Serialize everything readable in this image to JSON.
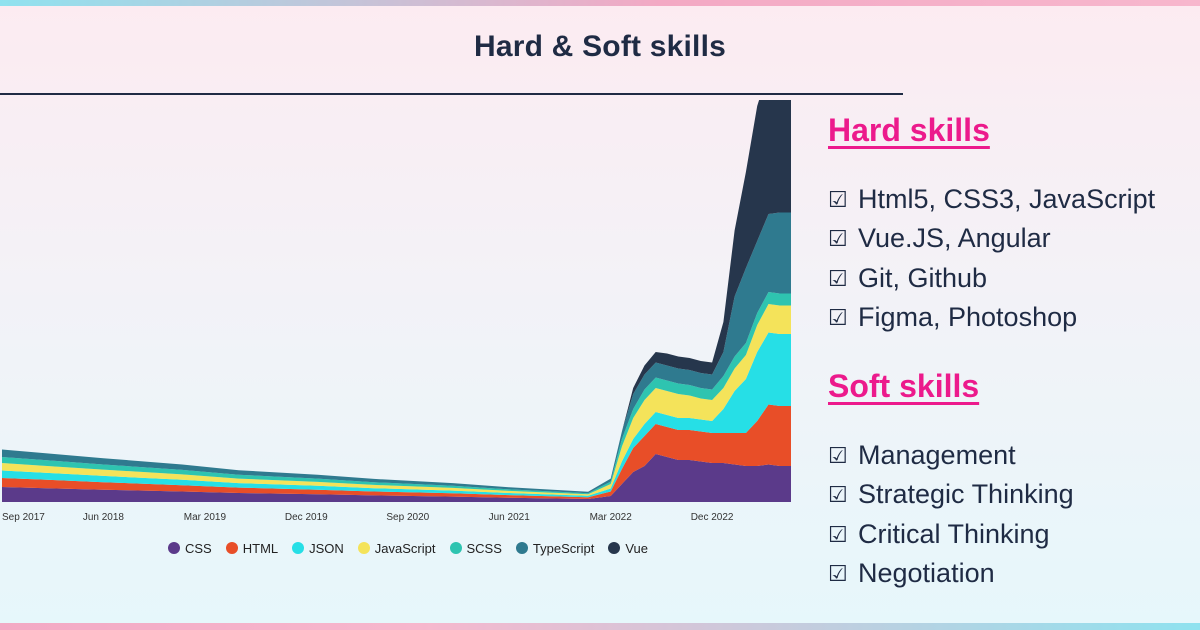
{
  "header": {
    "title": "Hard & Soft skills"
  },
  "chart_data": {
    "type": "area",
    "stacked": true,
    "x_ticks": [
      "Sep 2017",
      "Jun 2018",
      "Mar 2019",
      "Dec 2019",
      "Sep 2020",
      "Jun 2021",
      "Mar 2022",
      "Dec 2022"
    ],
    "x": [
      "2017-09",
      "2018-01",
      "2018-06",
      "2019-01",
      "2019-06",
      "2020-01",
      "2020-06",
      "2021-01",
      "2021-06",
      "2022-01",
      "2022-03",
      "2022-04",
      "2022-05",
      "2022-06",
      "2022-07",
      "2022-08",
      "2022-09",
      "2022-10",
      "2022-11",
      "2022-12",
      "2023-01",
      "2023-02",
      "2023-03",
      "2023-04",
      "2023-05",
      "2023-06",
      "2023-07"
    ],
    "series": [
      {
        "name": "CSS",
        "color": "#5b3a8a",
        "values": [
          5,
          4.6,
          4.1,
          3.5,
          3,
          2.6,
          2.2,
          1.8,
          1.4,
          1,
          2,
          6,
          10,
          12,
          16,
          15,
          14,
          14,
          13.5,
          13,
          13,
          12.5,
          12,
          12,
          12.5,
          12,
          12
        ]
      },
      {
        "name": "HTML",
        "color": "#e84e28",
        "values": [
          3,
          2.8,
          2.5,
          2.1,
          1.8,
          1.5,
          1.3,
          1.1,
          0.9,
          0.6,
          1.5,
          5,
          8,
          10,
          10,
          10,
          10,
          10,
          10,
          10,
          10,
          10.5,
          11,
          15,
          20,
          20,
          20
        ]
      },
      {
        "name": "JSON",
        "color": "#26dfe6",
        "values": [
          2.5,
          2.3,
          2.1,
          1.8,
          1.5,
          1.3,
          1.1,
          0.9,
          0.7,
          0.5,
          1,
          2.5,
          3,
          4,
          4,
          4,
          4,
          4,
          4,
          4,
          8,
          14,
          18,
          23,
          24,
          24,
          24
        ]
      },
      {
        "name": "JavaScript",
        "color": "#f4e35a",
        "values": [
          2.5,
          2.3,
          2.1,
          1.8,
          1.5,
          1.3,
          1.1,
          0.9,
          0.7,
          0.5,
          1.5,
          5,
          7,
          8,
          8,
          8,
          8,
          7.5,
          7,
          7,
          7,
          7.5,
          8,
          9,
          9.5,
          9.5,
          9.5
        ]
      },
      {
        "name": "SCSS",
        "color": "#2ec4b0",
        "values": [
          2,
          1.9,
          1.7,
          1.5,
          1.3,
          1.1,
          0.9,
          0.7,
          0.5,
          0.3,
          0.8,
          2.5,
          3,
          3.5,
          3.5,
          3.5,
          3.5,
          3.5,
          3.5,
          3.5,
          4,
          4,
          4,
          4,
          4,
          4,
          4
        ]
      },
      {
        "name": "TypeScript",
        "color": "#2f7a8f",
        "values": [
          2.5,
          2.3,
          2.1,
          1.8,
          1.5,
          1.3,
          1.1,
          0.9,
          0.7,
          0.5,
          1,
          2.5,
          5,
          5,
          5,
          5,
          5,
          5,
          5,
          5,
          8,
          20,
          25,
          24,
          26,
          27,
          27
        ]
      },
      {
        "name": "Vue",
        "color": "#26364c",
        "values": [
          0,
          0,
          0,
          0,
          0,
          0,
          0,
          0,
          0,
          0,
          0,
          0,
          2,
          3,
          3.5,
          4,
          4,
          4,
          4,
          4,
          10,
          22,
          32,
          45,
          48,
          52,
          55
        ]
      }
    ],
    "legend_position": "bottom",
    "grid": false
  },
  "hard_skills": {
    "heading": "Hard skills",
    "items": [
      "Html5, CSS3, JavaScript",
      "Vue.JS, Angular",
      "Git, Github",
      "Figma, Photoshop"
    ]
  },
  "soft_skills": {
    "heading": "Soft skills",
    "items": [
      "Management",
      "Strategic Thinking",
      "Critical Thinking",
      "Negotiation"
    ]
  },
  "check_glyph": "☑"
}
